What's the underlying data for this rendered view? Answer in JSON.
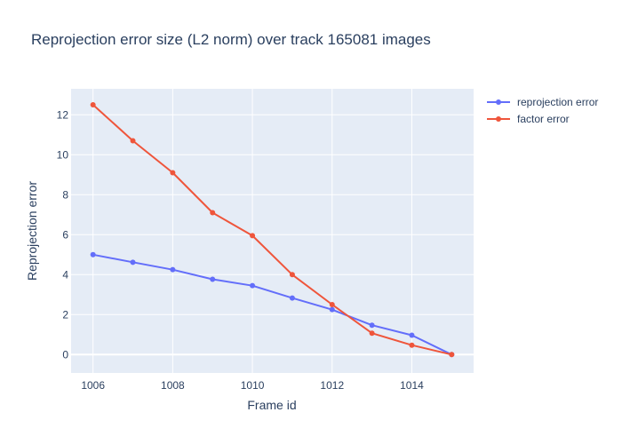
{
  "chart_data": {
    "type": "line",
    "title": "Reprojection error size (L2 norm) over track 165081 images",
    "xlabel": "Frame id",
    "ylabel": "Reprojection error",
    "x": [
      1006,
      1007,
      1008,
      1009,
      1010,
      1011,
      1012,
      1013,
      1014,
      1015
    ],
    "series": [
      {
        "name": "reprojection error",
        "color": "#636efa",
        "values": [
          5.0,
          4.62,
          4.25,
          3.77,
          3.45,
          2.83,
          2.25,
          1.47,
          0.97,
          0.0
        ]
      },
      {
        "name": "factor error",
        "color": "#ef553b",
        "values": [
          12.5,
          10.7,
          9.1,
          7.1,
          5.95,
          4.0,
          2.5,
          1.07,
          0.47,
          0.0
        ]
      }
    ],
    "xticks": [
      "1006",
      "1008",
      "1010",
      "1012",
      "1014"
    ],
    "yticks": [
      "0",
      "2",
      "4",
      "6",
      "8",
      "10",
      "12"
    ],
    "xlim": [
      1005.45,
      1015.55
    ],
    "ylim": [
      -0.92,
      13.3
    ],
    "grid": true,
    "legend_position": "top-right",
    "plot_background": "#e5ecf6"
  }
}
